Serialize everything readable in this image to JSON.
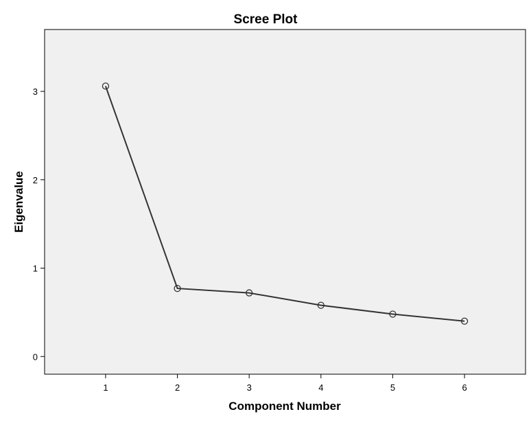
{
  "chart_data": {
    "type": "line",
    "title": "Scree Plot",
    "xlabel": "Component Number",
    "ylabel": "Eigenvalue",
    "x": [
      1,
      2,
      3,
      4,
      5,
      6
    ],
    "y": [
      3.06,
      0.77,
      0.72,
      0.58,
      0.48,
      0.4
    ],
    "xlim": [
      0.15,
      6.85
    ],
    "ylim": [
      -0.2,
      3.7
    ],
    "xticks": [
      "1",
      "2",
      "3",
      "4",
      "5",
      "6"
    ],
    "yticks": [
      "0",
      "1",
      "2",
      "3"
    ],
    "grid": false,
    "colors": {
      "plot_background": "#f0f0f0",
      "line": "#333333",
      "marker": "#333333",
      "frame": "#000000"
    }
  }
}
